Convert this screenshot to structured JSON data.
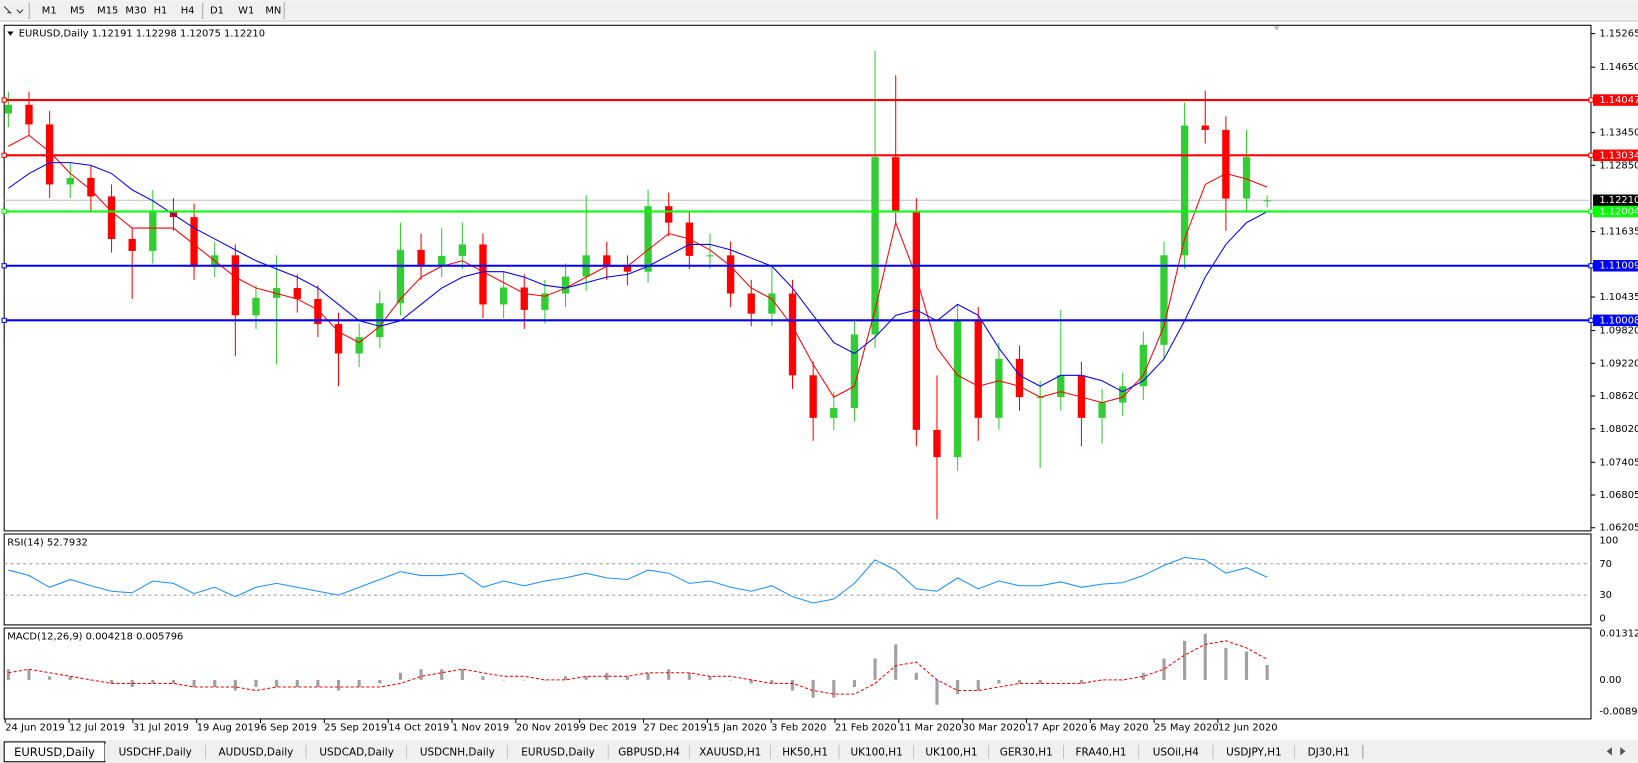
{
  "toolbar": {
    "timeframes": [
      "M1",
      "M5",
      "M15",
      "M30",
      "H1",
      "H4",
      "D1",
      "W1",
      "MN"
    ]
  },
  "tabs": [
    "EURUSD,Daily",
    "USDCHF,Daily",
    "AUDUSD,Daily",
    "USDCAD,Daily",
    "USDCNH,Daily",
    "EURUSD,Daily",
    "GBPUSD,H4",
    "XAUUSD,H1",
    "HK50,H1",
    "UK100,H1",
    "UK100,H1",
    "GER30,H1",
    "FRA40,H1",
    "USOil,H4",
    "USDJPY,H1",
    "DJ30,H1"
  ],
  "active_tab": 0,
  "chart_data": [
    {
      "type": "candlestick",
      "title": "EURUSD,Daily  1.12191 1.12298 1.12075 1.12210",
      "up_color": "#32cd32",
      "down_color": "#ff0000",
      "candles": [
        [
          1.138,
          1.142,
          1.1355,
          1.1396
        ],
        [
          1.1396,
          1.142,
          1.134,
          1.136
        ],
        [
          1.136,
          1.1385,
          1.1225,
          1.125
        ],
        [
          1.125,
          1.129,
          1.1225,
          1.1262
        ],
        [
          1.1262,
          1.1285,
          1.12,
          1.1228
        ],
        [
          1.1228,
          1.125,
          1.1125,
          1.115
        ],
        [
          1.115,
          1.117,
          1.104,
          1.1128
        ],
        [
          1.1128,
          1.124,
          1.1105,
          1.12
        ],
        [
          1.12,
          1.1225,
          1.1165,
          1.119
        ],
        [
          1.119,
          1.1215,
          1.1075,
          1.1099
        ],
        [
          1.1099,
          1.1145,
          1.108,
          1.112
        ],
        [
          1.112,
          1.114,
          1.0935,
          1.101
        ],
        [
          1.101,
          1.1065,
          1.0985,
          1.1042
        ],
        [
          1.1042,
          1.112,
          1.092,
          1.106
        ],
        [
          1.106,
          1.1085,
          1.1015,
          1.104
        ],
        [
          1.104,
          1.1065,
          1.097,
          1.0994
        ],
        [
          1.0994,
          1.1015,
          1.088,
          1.094
        ],
        [
          1.094,
          1.0995,
          1.0915,
          1.097
        ],
        [
          1.097,
          1.1055,
          1.095,
          1.1032
        ],
        [
          1.1032,
          1.118,
          1.101,
          1.113
        ],
        [
          1.113,
          1.116,
          1.1075,
          1.11
        ],
        [
          1.11,
          1.117,
          1.108,
          1.1119
        ],
        [
          1.1119,
          1.118,
          1.1095,
          1.114
        ],
        [
          1.114,
          1.116,
          1.1005,
          1.103
        ],
        [
          1.103,
          1.109,
          1.1005,
          1.1061
        ],
        [
          1.1061,
          1.1085,
          1.0985,
          1.102
        ],
        [
          1.102,
          1.1075,
          1.0995,
          1.105
        ],
        [
          1.105,
          1.1105,
          1.1025,
          1.1081
        ],
        [
          1.1081,
          1.123,
          1.1055,
          1.112
        ],
        [
          1.112,
          1.1145,
          1.1075,
          1.11
        ],
        [
          1.11,
          1.112,
          1.1065,
          1.109
        ],
        [
          1.109,
          1.124,
          1.107,
          1.121
        ],
        [
          1.121,
          1.1235,
          1.1155,
          1.118
        ],
        [
          1.118,
          1.12,
          1.1095,
          1.1119
        ],
        [
          1.1119,
          1.116,
          1.1095,
          1.112
        ],
        [
          1.112,
          1.1145,
          1.1025,
          1.105
        ],
        [
          1.105,
          1.1075,
          1.099,
          1.1013
        ],
        [
          1.1013,
          1.11,
          1.099,
          1.105
        ],
        [
          1.105,
          1.1075,
          1.0875,
          1.09
        ],
        [
          1.09,
          1.0925,
          1.078,
          1.0822
        ],
        [
          1.0822,
          1.087,
          1.08,
          1.084
        ],
        [
          1.084,
          1.1,
          1.0815,
          1.0975
        ],
        [
          1.0975,
          1.1495,
          1.095,
          1.13
        ],
        [
          1.13,
          1.145,
          1.1175,
          1.12
        ],
        [
          1.12,
          1.1225,
          1.077,
          1.08
        ],
        [
          1.08,
          1.09,
          1.0636,
          1.075
        ],
        [
          1.075,
          1.103,
          1.0725,
          1.1
        ],
        [
          1.1,
          1.1025,
          1.078,
          1.0822
        ],
        [
          1.0822,
          1.096,
          1.08,
          1.093
        ],
        [
          1.093,
          1.0955,
          1.0835,
          1.086
        ],
        [
          1.086,
          1.089,
          1.073,
          1.086
        ],
        [
          1.086,
          1.102,
          1.0835,
          1.09
        ],
        [
          1.09,
          1.0925,
          1.077,
          1.0822
        ],
        [
          1.0822,
          1.0875,
          1.0775,
          1.085
        ],
        [
          1.085,
          1.0905,
          1.0825,
          1.088
        ],
        [
          1.088,
          1.098,
          1.0855,
          1.0956
        ],
        [
          1.0956,
          1.1145,
          1.093,
          1.112
        ],
        [
          1.112,
          1.14,
          1.1095,
          1.1358
        ],
        [
          1.1358,
          1.1422,
          1.1325,
          1.135
        ],
        [
          1.135,
          1.1375,
          1.1165,
          1.1224
        ],
        [
          1.1224,
          1.135,
          1.12,
          1.13
        ],
        [
          1.12191,
          1.12298,
          1.12075,
          1.1221
        ]
      ],
      "moving_averages": [
        {
          "color": "#ff0000",
          "values": [
            1.132,
            1.134,
            1.131,
            1.127,
            1.124,
            1.12,
            1.117,
            1.117,
            1.117,
            1.114,
            1.111,
            1.108,
            1.106,
            1.105,
            1.104,
            1.102,
            1.098,
            1.096,
            1.099,
            1.104,
            1.108,
            1.11,
            1.111,
            1.109,
            1.107,
            1.105,
            1.1045,
            1.106,
            1.108,
            1.11,
            1.11,
            1.113,
            1.116,
            1.115,
            1.113,
            1.11,
            1.106,
            1.104,
            1.099,
            1.092,
            1.086,
            1.088,
            1.102,
            1.118,
            1.108,
            1.095,
            1.09,
            1.088,
            1.089,
            1.088,
            1.086,
            1.087,
            1.086,
            1.085,
            1.086,
            1.09,
            1.099,
            1.115,
            1.125,
            1.127,
            1.126,
            1.1245
          ]
        },
        {
          "color": "#0000ff",
          "values": [
            1.1243,
            1.127,
            1.129,
            1.129,
            1.1285,
            1.127,
            1.124,
            1.122,
            1.1195,
            1.117,
            1.115,
            1.113,
            1.111,
            1.1095,
            1.108,
            1.106,
            1.103,
            1.1,
            1.099,
            1.1,
            1.103,
            1.106,
            1.108,
            1.109,
            1.109,
            1.108,
            1.1065,
            1.106,
            1.107,
            1.108,
            1.1085,
            1.11,
            1.112,
            1.114,
            1.114,
            1.113,
            1.1115,
            1.11,
            1.106,
            1.101,
            1.096,
            1.094,
            1.097,
            1.101,
            1.102,
            1.1,
            1.103,
            1.101,
            1.095,
            1.09,
            1.088,
            1.09,
            1.09,
            1.089,
            1.087,
            1.089,
            1.093,
            1.1,
            1.108,
            1.114,
            1.118,
            1.12
          ]
        }
      ],
      "levels": [
        {
          "value": 1.14047,
          "color": "#ff0000"
        },
        {
          "value": 1.13034,
          "color": "#ff0000"
        },
        {
          "value": 1.12004,
          "color": "#00ff00"
        },
        {
          "value": 1.11009,
          "color": "#0000ff"
        },
        {
          "value": 1.10008,
          "color": "#0000ff"
        }
      ],
      "current_price": {
        "value": 1.1221,
        "label": "1.12210"
      },
      "ylim": [
        1.06205,
        1.15265
      ],
      "yticks": [
        1.15265,
        {
          "value": 1.1465,
          "label": "1.14650"
        },
        {
          "value": 1.1345,
          "label": "1.13450"
        },
        {
          "value": 1.1285,
          "label": "1.12850"
        },
        1.11635,
        1.10435,
        {
          "value": 1.0982,
          "label": "1.09820"
        },
        {
          "value": 1.0922,
          "label": "1.09220"
        },
        {
          "value": 1.0862,
          "label": "1.08620"
        },
        {
          "value": 1.0802,
          "label": "1.08020"
        },
        1.07405,
        1.06805,
        1.06205
      ],
      "date_labels": [
        "24 Jun 2019",
        "12 Jul 2019",
        "31 Jul 2019",
        "19 Aug 2019",
        "6 Sep 2019",
        "25 Sep 2019",
        "14 Oct 2019",
        "1 Nov 2019",
        "20 Nov 2019",
        "9 Dec 2019",
        "27 Dec 2019",
        "15 Jan 2020",
        "3 Feb 2020",
        "21 Feb 2020",
        "11 Mar 2020",
        "30 Mar 2020",
        "17 Apr 2020",
        "6 May 2020",
        "25 May 2020",
        "12 Jun 2020"
      ]
    },
    {
      "type": "line",
      "title": "RSI(14) 52.7932",
      "color": "#1e90ff",
      "values": [
        62,
        55,
        40,
        50,
        42,
        35,
        33,
        48,
        45,
        32,
        40,
        28,
        40,
        45,
        40,
        35,
        30,
        40,
        50,
        60,
        55,
        55,
        58,
        40,
        48,
        42,
        48,
        52,
        58,
        52,
        50,
        62,
        58,
        45,
        48,
        40,
        35,
        42,
        28,
        20,
        25,
        45,
        75,
        62,
        38,
        35,
        52,
        38,
        48,
        42,
        42,
        47,
        40,
        44,
        46,
        55,
        68,
        78,
        75,
        58,
        65,
        52.7932
      ],
      "ylim": [
        0,
        100
      ],
      "yticks": [
        100,
        70,
        30,
        0
      ],
      "levels": [
        70,
        30
      ]
    },
    {
      "type": "macd",
      "title": "MACD(12,26,9) 0.004218 0.005796",
      "histogram_color": "#a0a0a0",
      "signal_color": "#ff0000",
      "values": [
        0.003,
        0.003,
        0.001,
        0.001,
        0,
        -0.001,
        -0.002,
        -0.001,
        -0.001,
        -0.002,
        -0.002,
        -0.003,
        -0.002,
        -0.002,
        -0.002,
        -0.002,
        -0.003,
        -0.002,
        -0.001,
        0.002,
        0.003,
        0.003,
        0.003,
        0.001,
        0,
        0,
        0,
        0.001,
        0.001,
        0.002,
        0.001,
        0.002,
        0.003,
        0.002,
        0.001,
        0,
        -0.001,
        -0.001,
        -0.003,
        -0.005,
        -0.005,
        -0.002,
        0.006,
        0.01,
        0.002,
        -0.007,
        -0.004,
        -0.003,
        -0.001,
        -0.001,
        -0.001,
        0,
        -0.001,
        0,
        0,
        0.002,
        0.006,
        0.011,
        0.013,
        0.009,
        0.008,
        0.004218
      ],
      "signal": [
        0.002,
        0.003,
        0.002,
        0.001,
        0,
        -0.001,
        -0.001,
        -0.001,
        -0.001,
        -0.002,
        -0.002,
        -0.002,
        -0.003,
        -0.002,
        -0.002,
        -0.002,
        -0.002,
        -0.002,
        -0.002,
        -0.001,
        0.001,
        0.002,
        0.003,
        0.002,
        0.001,
        0.001,
        0,
        0,
        0.001,
        0.001,
        0.001,
        0.002,
        0.002,
        0.002,
        0.001,
        0.001,
        0,
        -0.001,
        -0.001,
        -0.003,
        -0.004,
        -0.004,
        -0.001,
        0.004,
        0.005,
        0,
        -0.003,
        -0.003,
        -0.002,
        -0.001,
        -0.001,
        -0.001,
        -0.001,
        0,
        0,
        0.001,
        0.003,
        0.007,
        0.01,
        0.011,
        0.009,
        0.005796
      ],
      "ylim": [
        -0.00893,
        0.013121
      ],
      "yticks": [
        0.013121,
        {
          "value": 0,
          "label": "0.00"
        },
        -0.00893
      ]
    }
  ]
}
